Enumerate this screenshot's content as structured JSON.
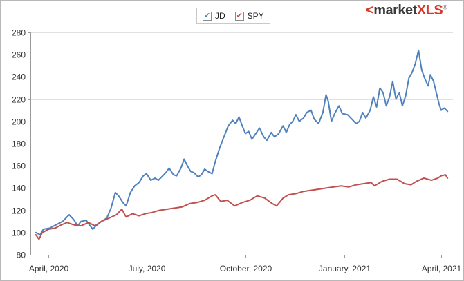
{
  "logo": {
    "bracket": "<",
    "word": "market",
    "xls": "XLS",
    "reg": "®"
  },
  "colors": {
    "JD": "#4f81bd",
    "SPY": "#c0504d",
    "grid": "#e0e0e0",
    "axis": "#9a9a9a"
  },
  "chart_data": {
    "type": "line",
    "title": "",
    "xlabel": "",
    "ylabel": "",
    "ylim": [
      80,
      280
    ],
    "yticks": [
      80,
      100,
      120,
      140,
      160,
      180,
      200,
      220,
      240,
      260,
      280
    ],
    "xticks": [
      {
        "date": "2020-04-01",
        "label": "April, 2020"
      },
      {
        "date": "2020-07-01",
        "label": "July, 2020"
      },
      {
        "date": "2020-10-01",
        "label": "October, 2020"
      },
      {
        "date": "2021-01-01",
        "label": "January, 2021"
      },
      {
        "date": "2021-04-01",
        "label": "April, 2021"
      }
    ],
    "xlim": [
      "2020-03-15",
      "2021-04-12"
    ],
    "grid": true,
    "legend_position": "top-center",
    "series": [
      {
        "name": "JD",
        "points": [
          [
            "2020-03-20",
            100
          ],
          [
            "2020-03-24",
            98
          ],
          [
            "2020-03-27",
            103
          ],
          [
            "2020-04-02",
            104
          ],
          [
            "2020-04-08",
            107
          ],
          [
            "2020-04-14",
            110
          ],
          [
            "2020-04-20",
            116
          ],
          [
            "2020-04-24",
            112
          ],
          [
            "2020-04-28",
            106
          ],
          [
            "2020-05-01",
            110
          ],
          [
            "2020-05-06",
            111
          ],
          [
            "2020-05-08",
            108
          ],
          [
            "2020-05-12",
            103
          ],
          [
            "2020-05-15",
            106
          ],
          [
            "2020-05-20",
            110
          ],
          [
            "2020-05-25",
            113
          ],
          [
            "2020-05-29",
            122
          ],
          [
            "2020-06-02",
            136
          ],
          [
            "2020-06-05",
            133
          ],
          [
            "2020-06-09",
            127
          ],
          [
            "2020-06-12",
            124
          ],
          [
            "2020-06-16",
            136
          ],
          [
            "2020-06-20",
            142
          ],
          [
            "2020-06-24",
            145
          ],
          [
            "2020-06-28",
            151
          ],
          [
            "2020-07-01",
            153
          ],
          [
            "2020-07-05",
            147
          ],
          [
            "2020-07-09",
            149
          ],
          [
            "2020-07-12",
            147
          ],
          [
            "2020-07-15",
            150
          ],
          [
            "2020-07-19",
            154
          ],
          [
            "2020-07-22",
            158
          ],
          [
            "2020-07-26",
            152
          ],
          [
            "2020-07-29",
            151
          ],
          [
            "2020-08-02",
            158
          ],
          [
            "2020-08-05",
            166
          ],
          [
            "2020-08-08",
            160
          ],
          [
            "2020-08-11",
            155
          ],
          [
            "2020-08-14",
            154
          ],
          [
            "2020-08-18",
            150
          ],
          [
            "2020-08-21",
            152
          ],
          [
            "2020-08-24",
            157
          ],
          [
            "2020-08-27",
            155
          ],
          [
            "2020-08-31",
            153
          ],
          [
            "2020-09-03",
            164
          ],
          [
            "2020-09-07",
            176
          ],
          [
            "2020-09-11",
            186
          ],
          [
            "2020-09-15",
            196
          ],
          [
            "2020-09-19",
            201
          ],
          [
            "2020-09-22",
            198
          ],
          [
            "2020-09-25",
            204
          ],
          [
            "2020-09-28",
            196
          ],
          [
            "2020-10-01",
            189
          ],
          [
            "2020-10-04",
            191
          ],
          [
            "2020-10-07",
            184
          ],
          [
            "2020-10-10",
            188
          ],
          [
            "2020-10-14",
            194
          ],
          [
            "2020-10-18",
            186
          ],
          [
            "2020-10-21",
            183
          ],
          [
            "2020-10-25",
            190
          ],
          [
            "2020-10-28",
            186
          ],
          [
            "2020-11-01",
            189
          ],
          [
            "2020-11-05",
            196
          ],
          [
            "2020-11-08",
            190
          ],
          [
            "2020-11-11",
            197
          ],
          [
            "2020-11-14",
            200
          ],
          [
            "2020-11-17",
            206
          ],
          [
            "2020-11-20",
            200
          ],
          [
            "2020-11-24",
            203
          ],
          [
            "2020-11-27",
            208
          ],
          [
            "2020-12-01",
            210
          ],
          [
            "2020-12-04",
            202
          ],
          [
            "2020-12-08",
            198
          ],
          [
            "2020-12-12",
            208
          ],
          [
            "2020-12-15",
            224
          ],
          [
            "2020-12-17",
            218
          ],
          [
            "2020-12-20",
            200
          ],
          [
            "2020-12-23",
            207
          ],
          [
            "2020-12-27",
            214
          ],
          [
            "2020-12-30",
            207
          ],
          [
            "2021-01-04",
            206
          ],
          [
            "2021-01-08",
            202
          ],
          [
            "2021-01-12",
            198
          ],
          [
            "2021-01-15",
            200
          ],
          [
            "2021-01-18",
            208
          ],
          [
            "2021-01-21",
            203
          ],
          [
            "2021-01-25",
            210
          ],
          [
            "2021-01-28",
            222
          ],
          [
            "2021-01-31",
            213
          ],
          [
            "2021-02-03",
            230
          ],
          [
            "2021-02-06",
            226
          ],
          [
            "2021-02-09",
            214
          ],
          [
            "2021-02-12",
            222
          ],
          [
            "2021-02-15",
            236
          ],
          [
            "2021-02-18",
            220
          ],
          [
            "2021-02-21",
            226
          ],
          [
            "2021-02-24",
            214
          ],
          [
            "2021-02-27",
            223
          ],
          [
            "2021-03-02",
            239
          ],
          [
            "2021-03-05",
            244
          ],
          [
            "2021-03-08",
            252
          ],
          [
            "2021-03-11",
            264
          ],
          [
            "2021-03-14",
            246
          ],
          [
            "2021-03-17",
            238
          ],
          [
            "2021-03-20",
            232
          ],
          [
            "2021-03-22",
            242
          ],
          [
            "2021-03-25",
            236
          ],
          [
            "2021-03-28",
            224
          ],
          [
            "2021-03-30",
            216
          ],
          [
            "2021-04-01",
            210
          ],
          [
            "2021-04-04",
            212
          ],
          [
            "2021-04-07",
            209
          ]
        ]
      },
      {
        "name": "SPY",
        "points": [
          [
            "2020-03-20",
            98
          ],
          [
            "2020-03-23",
            94
          ],
          [
            "2020-03-26",
            100
          ],
          [
            "2020-04-01",
            103
          ],
          [
            "2020-04-07",
            104
          ],
          [
            "2020-04-13",
            107
          ],
          [
            "2020-04-18",
            109
          ],
          [
            "2020-04-24",
            107
          ],
          [
            "2020-05-01",
            106
          ],
          [
            "2020-05-08",
            109
          ],
          [
            "2020-05-14",
            106
          ],
          [
            "2020-05-20",
            110
          ],
          [
            "2020-05-27",
            113
          ],
          [
            "2020-06-03",
            116
          ],
          [
            "2020-06-08",
            121
          ],
          [
            "2020-06-12",
            114
          ],
          [
            "2020-06-18",
            117
          ],
          [
            "2020-06-24",
            115
          ],
          [
            "2020-06-30",
            117
          ],
          [
            "2020-07-06",
            118
          ],
          [
            "2020-07-13",
            120
          ],
          [
            "2020-07-20",
            121
          ],
          [
            "2020-07-27",
            122
          ],
          [
            "2020-08-03",
            123
          ],
          [
            "2020-08-10",
            126
          ],
          [
            "2020-08-17",
            127
          ],
          [
            "2020-08-24",
            129
          ],
          [
            "2020-08-31",
            133
          ],
          [
            "2020-09-03",
            134
          ],
          [
            "2020-09-08",
            128
          ],
          [
            "2020-09-14",
            129
          ],
          [
            "2020-09-21",
            124
          ],
          [
            "2020-09-28",
            127
          ],
          [
            "2020-10-05",
            129
          ],
          [
            "2020-10-12",
            133
          ],
          [
            "2020-10-19",
            131
          ],
          [
            "2020-10-26",
            126
          ],
          [
            "2020-10-30",
            124
          ],
          [
            "2020-11-05",
            131
          ],
          [
            "2020-11-10",
            134
          ],
          [
            "2020-11-17",
            135
          ],
          [
            "2020-11-24",
            137
          ],
          [
            "2020-12-01",
            138
          ],
          [
            "2020-12-08",
            139
          ],
          [
            "2020-12-15",
            140
          ],
          [
            "2020-12-22",
            141
          ],
          [
            "2020-12-29",
            142
          ],
          [
            "2021-01-05",
            141
          ],
          [
            "2021-01-12",
            143
          ],
          [
            "2021-01-19",
            144
          ],
          [
            "2021-01-26",
            145
          ],
          [
            "2021-01-29",
            142
          ],
          [
            "2021-02-05",
            146
          ],
          [
            "2021-02-12",
            148
          ],
          [
            "2021-02-19",
            148
          ],
          [
            "2021-02-26",
            144
          ],
          [
            "2021-03-04",
            143
          ],
          [
            "2021-03-09",
            146
          ],
          [
            "2021-03-16",
            149
          ],
          [
            "2021-03-23",
            147
          ],
          [
            "2021-03-29",
            149
          ],
          [
            "2021-04-01",
            151
          ],
          [
            "2021-04-05",
            152
          ],
          [
            "2021-04-07",
            149
          ]
        ]
      }
    ]
  }
}
